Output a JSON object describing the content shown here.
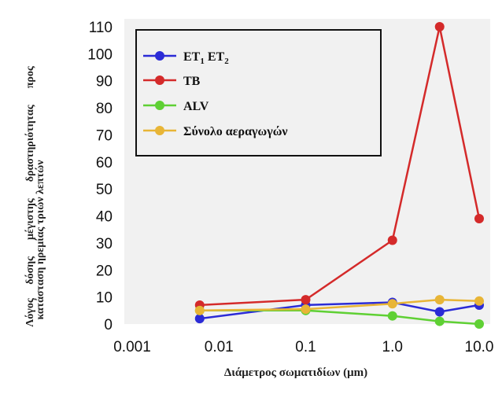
{
  "chart_data": {
    "type": "line",
    "x_scale": "log",
    "xlabel": "Διάμετρος σωματιδίων (μm)",
    "ylabel_lines": [
      "Λόγος     δόσης      μέγιστης      δραστηριότητας      προς",
      "κατάσταση ηρεμίας τριών λεπτών"
    ],
    "xlim": [
      0.001,
      10.0
    ],
    "ylim": [
      0,
      110
    ],
    "x_ticks": [
      0.001,
      0.01,
      0.1,
      1.0,
      10.0
    ],
    "x_tick_labels": [
      "0.001",
      "0.01",
      "0.1",
      "1.0",
      "10.0"
    ],
    "y_ticks": [
      0,
      10,
      20,
      30,
      40,
      50,
      60,
      70,
      80,
      90,
      100,
      110
    ],
    "y_tick_labels": [
      "0",
      "10",
      "20",
      "30",
      "40",
      "50",
      "60",
      "70",
      "80",
      "90",
      "100",
      "110"
    ],
    "grid": false,
    "legend_position": "top-left",
    "x": [
      0.006,
      0.1,
      1.0,
      3.5,
      10.0
    ],
    "series": [
      {
        "name": "ET1 ET2",
        "legend_main": "ET",
        "legend_sub1": "1",
        "legend_mid": " ET",
        "legend_sub2": "2",
        "color": "#2b2bd6",
        "values": [
          2,
          7,
          8,
          4.5,
          7
        ]
      },
      {
        "name": "TB",
        "legend_main": "TB",
        "color": "#d42a2a",
        "values": [
          7,
          9,
          31,
          110,
          39
        ]
      },
      {
        "name": "ALV",
        "legend_main": "ALV",
        "color": "#5fd034",
        "values": [
          5,
          5,
          3,
          1,
          0
        ]
      },
      {
        "name": "Σύνολο αεραγωγών",
        "legend_main": "Σύνολο αεραγωγών",
        "color": "#e8b536",
        "values": [
          5,
          5.5,
          7.5,
          9,
          8.5
        ]
      }
    ]
  }
}
